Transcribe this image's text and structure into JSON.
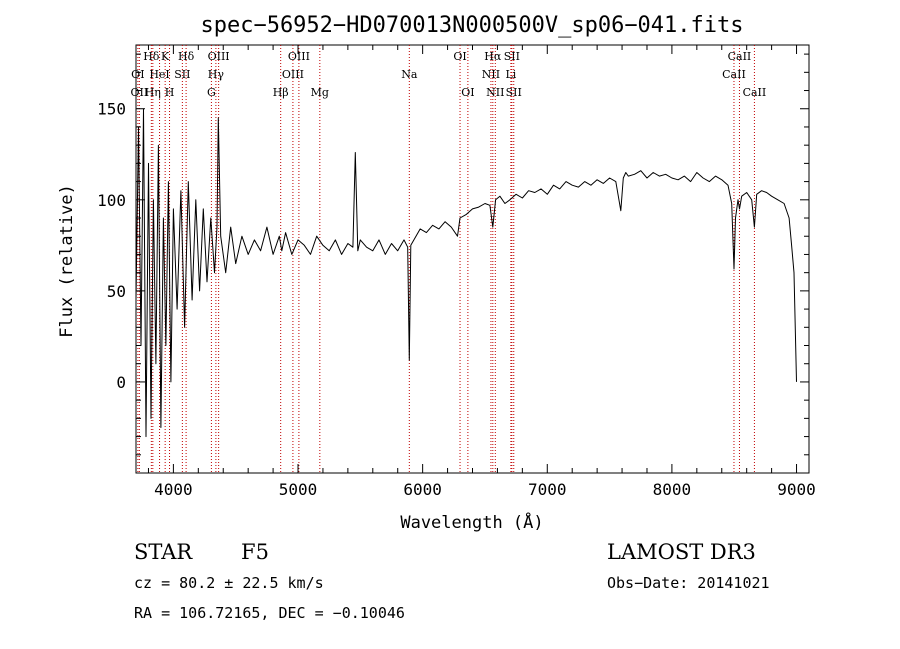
{
  "chart_data": {
    "type": "line",
    "title": "spec−56952−HD070013N000500V_sp06−041.fits",
    "xlabel": "Wavelength (Å)",
    "ylabel": "Flux (relative)",
    "xlim": [
      3700,
      9100
    ],
    "ylim": [
      -50,
      185
    ],
    "xticks": [
      4000,
      5000,
      6000,
      7000,
      8000,
      9000
    ],
    "yticks": [
      0,
      50,
      100,
      150
    ],
    "series": [
      {
        "name": "flux",
        "x": [
          3700,
          3720,
          3740,
          3760,
          3780,
          3800,
          3820,
          3840,
          3860,
          3880,
          3900,
          3920,
          3940,
          3960,
          3980,
          4000,
          4030,
          4060,
          4090,
          4120,
          4150,
          4180,
          4210,
          4240,
          4270,
          4300,
          4330,
          4350,
          4360,
          4380,
          4420,
          4460,
          4500,
          4550,
          4600,
          4650,
          4700,
          4750,
          4800,
          4850,
          4870,
          4900,
          4950,
          5000,
          5050,
          5100,
          5150,
          5200,
          5250,
          5300,
          5350,
          5400,
          5440,
          5460,
          5480,
          5500,
          5550,
          5600,
          5650,
          5700,
          5750,
          5800,
          5850,
          5880,
          5893,
          5905,
          5930,
          5980,
          6030,
          6080,
          6130,
          6180,
          6230,
          6280,
          6300,
          6350,
          6400,
          6450,
          6500,
          6540,
          6563,
          6585,
          6620,
          6660,
          6700,
          6750,
          6800,
          6850,
          6900,
          6950,
          7000,
          7050,
          7100,
          7150,
          7200,
          7250,
          7300,
          7350,
          7400,
          7450,
          7500,
          7550,
          7590,
          7610,
          7630,
          7650,
          7700,
          7750,
          7800,
          7850,
          7900,
          7950,
          8000,
          8050,
          8100,
          8150,
          8200,
          8250,
          8300,
          8350,
          8400,
          8450,
          8480,
          8498,
          8510,
          8530,
          8542,
          8560,
          8600,
          8640,
          8662,
          8680,
          8720,
          8760,
          8800,
          8850,
          8900,
          8940,
          8960,
          8980,
          9000
        ],
        "y": [
          45,
          140,
          20,
          150,
          -30,
          120,
          -20,
          100,
          10,
          130,
          -25,
          90,
          20,
          110,
          0,
          95,
          40,
          105,
          30,
          110,
          45,
          100,
          50,
          95,
          55,
          90,
          60,
          85,
          145,
          80,
          60,
          85,
          65,
          80,
          70,
          78,
          72,
          85,
          70,
          80,
          72,
          82,
          70,
          78,
          75,
          70,
          80,
          75,
          72,
          78,
          70,
          76,
          74,
          126,
          72,
          78,
          74,
          72,
          78,
          70,
          76,
          72,
          78,
          74,
          12,
          75,
          78,
          84,
          82,
          86,
          84,
          88,
          85,
          80,
          90,
          92,
          95,
          96,
          98,
          97,
          85,
          100,
          102,
          98,
          100,
          103,
          101,
          105,
          104,
          106,
          103,
          108,
          106,
          110,
          108,
          107,
          110,
          108,
          111,
          109,
          112,
          110,
          94,
          112,
          115,
          113,
          114,
          116,
          112,
          115,
          113,
          114,
          112,
          111,
          113,
          110,
          115,
          112,
          110,
          113,
          111,
          108,
          98,
          62,
          90,
          100,
          95,
          102,
          104,
          100,
          85,
          103,
          105,
          104,
          102,
          100,
          98,
          90,
          75,
          60,
          0
        ]
      }
    ],
    "spectral_lines": [
      {
        "label": "Hδ",
        "x": 3823,
        "row": 0
      },
      {
        "label": "OI",
        "x": 3715,
        "row": 1
      },
      {
        "label": "OII",
        "x": 3727,
        "row": 2
      },
      {
        "label": "K",
        "x": 3934,
        "row": 0
      },
      {
        "label": "HeI",
        "x": 3889,
        "row": 1
      },
      {
        "label": "Hη",
        "x": 3835,
        "row": 2
      },
      {
        "label": "H",
        "x": 3969,
        "row": 2
      },
      {
        "label": "SII",
        "x": 4072,
        "row": 1
      },
      {
        "label": "Hδ",
        "x": 4102,
        "row": 0
      },
      {
        "label": "OIII",
        "x": 4363,
        "row": 0
      },
      {
        "label": "Hγ",
        "x": 4341,
        "row": 1
      },
      {
        "label": "G",
        "x": 4305,
        "row": 2
      },
      {
        "label": "Hβ",
        "x": 4861,
        "row": 2
      },
      {
        "label": "OIII",
        "x": 5007,
        "row": 0
      },
      {
        "label": "OIII",
        "x": 4959,
        "row": 1
      },
      {
        "label": "Mg",
        "x": 5175,
        "row": 2
      },
      {
        "label": "Na",
        "x": 5893,
        "row": 1
      },
      {
        "label": "OI",
        "x": 6300,
        "row": 0
      },
      {
        "label": "OI",
        "x": 6363,
        "row": 2
      },
      {
        "label": "Hα",
        "x": 6563,
        "row": 0
      },
      {
        "label": "SII",
        "x": 6716,
        "row": 0
      },
      {
        "label": "NII",
        "x": 6548,
        "row": 1
      },
      {
        "label": "Li",
        "x": 6708,
        "row": 1
      },
      {
        "label": "NII",
        "x": 6583,
        "row": 2
      },
      {
        "label": "SII",
        "x": 6731,
        "row": 2
      },
      {
        "label": "CaII",
        "x": 8542,
        "row": 0
      },
      {
        "label": "CaII",
        "x": 8498,
        "row": 1
      },
      {
        "label": "CaII",
        "x": 8662,
        "row": 2
      }
    ]
  },
  "info": {
    "object_class": "STAR",
    "subclass": "F5",
    "survey": "LAMOST DR3",
    "redshift": "cz = 80.2 ± 22.5 km/s",
    "obs_date": "Obs−Date: 20141021",
    "coords": "RA = 106.72165, DEC =  −0.10046"
  }
}
